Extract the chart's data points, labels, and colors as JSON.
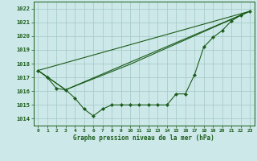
{
  "title": "Graphe pression niveau de la mer (hPa)",
  "background_color": "#cde8e8",
  "grid_color": "#aacccc",
  "line_color": "#1a5c1a",
  "xlim": [
    -0.5,
    23.5
  ],
  "ylim": [
    1013.5,
    1022.5
  ],
  "yticks": [
    1014,
    1015,
    1016,
    1017,
    1018,
    1019,
    1020,
    1021,
    1022
  ],
  "xticks": [
    0,
    1,
    2,
    3,
    4,
    5,
    6,
    7,
    8,
    9,
    10,
    11,
    12,
    13,
    14,
    15,
    16,
    17,
    18,
    19,
    20,
    21,
    22,
    23
  ],
  "series_main": {
    "x": [
      0,
      1,
      2,
      3,
      4,
      5,
      6,
      7,
      8,
      9,
      10,
      11,
      12,
      13,
      14,
      15,
      16,
      17,
      18,
      19,
      20,
      21,
      22,
      23
    ],
    "y": [
      1017.5,
      1017.0,
      1016.2,
      1016.1,
      1015.5,
      1014.7,
      1014.2,
      1014.7,
      1015.0,
      1015.0,
      1015.0,
      1015.0,
      1015.0,
      1015.0,
      1015.0,
      1015.8,
      1015.8,
      1017.2,
      1019.2,
      1019.9,
      1020.4,
      1021.1,
      1021.5,
      1021.8
    ]
  },
  "series_line1": {
    "x": [
      0,
      23
    ],
    "y": [
      1017.5,
      1021.8
    ]
  },
  "series_line2": {
    "x": [
      0,
      3,
      10,
      23
    ],
    "y": [
      1017.5,
      1016.1,
      1017.95,
      1021.8
    ]
  },
  "series_line3": {
    "x": [
      0,
      3,
      10,
      23
    ],
    "y": [
      1017.5,
      1016.1,
      1018.1,
      1021.8
    ]
  }
}
